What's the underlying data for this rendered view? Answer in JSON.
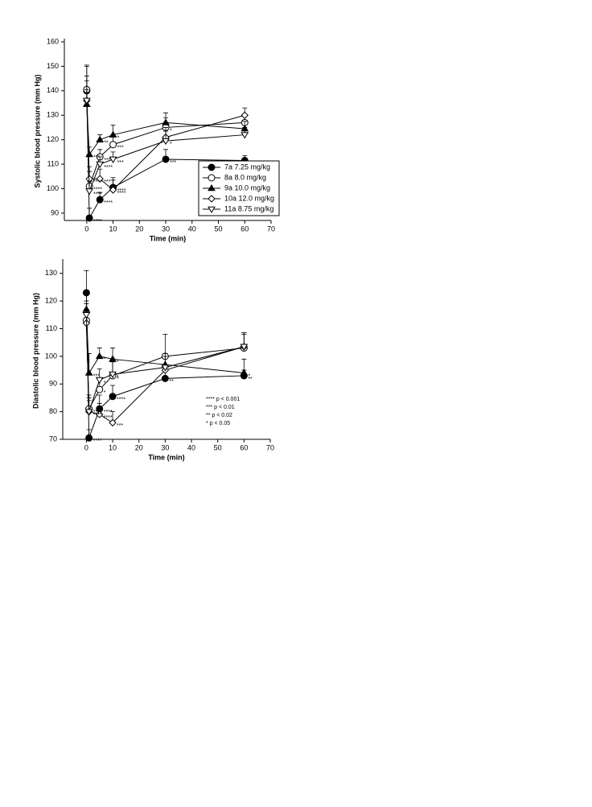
{
  "chart_data": [
    {
      "type": "line",
      "ylabel": "Systolic blood pressure (mm Hg)",
      "xlabel": "Time (min)",
      "x": [
        0,
        1,
        5,
        10,
        30,
        60
      ],
      "xlim": [
        -8.5,
        70
      ],
      "xticks": [
        0,
        10,
        20,
        30,
        40,
        50,
        60,
        70
      ],
      "ylim": [
        87,
        160
      ],
      "yticks": [
        90,
        100,
        110,
        120,
        130,
        140,
        150,
        160
      ],
      "legend": "lower right",
      "series": [
        {
          "name": "7a  7.25 mg/kg",
          "color": "#000000",
          "marker": "circle-filled",
          "values": [
            140,
            88,
            95.5,
            100.5,
            112,
            111.5
          ],
          "errors": [
            10,
            4,
            3,
            3,
            4,
            2
          ],
          "significance": [
            null,
            "****",
            "****",
            "****",
            "***",
            "***"
          ]
        },
        {
          "name": "8a  8.0 mg/kg",
          "color": "#000000",
          "marker": "circle-open",
          "values": [
            140.5,
            101,
            113,
            118,
            125,
            127
          ],
          "errors": [
            10,
            6,
            3,
            4,
            4,
            3
          ],
          "significance": [
            null,
            "****",
            "***",
            "***",
            "*",
            null
          ]
        },
        {
          "name": "9a  10.0 mg/kg",
          "color": "#000000",
          "marker": "triangle-filled",
          "values": [
            134.5,
            114,
            120,
            122,
            127,
            124.5
          ],
          "errors": [
            6,
            3,
            2,
            4,
            4,
            3
          ],
          "significance": [
            null,
            "***",
            "**",
            "*",
            null,
            null
          ]
        },
        {
          "name": "10a 12.0 mg/kg",
          "color": "#000000",
          "marker": "diamond-open",
          "values": [
            136,
            104,
            104,
            99.5,
            121,
            130
          ],
          "errors": [
            10,
            5,
            4,
            5,
            4,
            3
          ],
          "significance": [
            null,
            "****",
            "***",
            "****",
            null,
            null
          ]
        },
        {
          "name": "11a  8.75 mg/kg",
          "color": "#000000",
          "marker": "triangle-down-open",
          "values": [
            136,
            99,
            110,
            112,
            119.5,
            122
          ],
          "errors": [
            8,
            4,
            3,
            3,
            4,
            3
          ],
          "significance": [
            null,
            "****",
            "****",
            "***",
            "*",
            null
          ]
        }
      ]
    },
    {
      "type": "line",
      "ylabel": "Diastolic blood pressure (mm Hg)",
      "xlabel": "Time (min)",
      "x": [
        0,
        1,
        5,
        10,
        30,
        60
      ],
      "xlim": [
        -9,
        70
      ],
      "xticks": [
        0,
        10,
        20,
        30,
        40,
        50,
        60,
        70
      ],
      "ylim": [
        70,
        134
      ],
      "yticks": [
        70,
        80,
        90,
        100,
        110,
        120,
        130
      ],
      "notes": [
        "**** p < 0.001",
        "***  p < 0.01",
        "**   p < 0.02",
        "*    p < 0.05"
      ],
      "series": [
        {
          "name": "7a",
          "color": "#000000",
          "marker": "circle-filled",
          "values": [
            123,
            70.5,
            81,
            85.5,
            92,
            93
          ],
          "errors": [
            8,
            3,
            5,
            4,
            3,
            2
          ],
          "significance": [
            null,
            "****",
            "****",
            "****",
            "**",
            "**"
          ]
        },
        {
          "name": "8a",
          "color": "#000000",
          "marker": "circle-open",
          "values": [
            113,
            81,
            88,
            93,
            100,
            103
          ],
          "errors": [
            7,
            5,
            4,
            5,
            8,
            5
          ],
          "significance": [
            null,
            "****",
            "*",
            "*",
            null,
            null
          ]
        },
        {
          "name": "9a",
          "color": "#000000",
          "marker": "triangle-filled",
          "values": [
            117,
            94,
            100,
            99,
            97,
            94
          ],
          "errors": [
            2,
            7,
            3,
            4,
            3,
            5
          ],
          "significance": [
            null,
            "***",
            "*",
            "*",
            null,
            "*"
          ]
        },
        {
          "name": "10a",
          "color": "#000000",
          "marker": "diamond-open",
          "values": [
            112,
            80,
            79,
            76,
            95,
            103.5
          ],
          "errors": [
            5,
            5,
            4,
            4,
            5,
            5
          ],
          "significance": [
            null,
            "****",
            "****",
            "***",
            null,
            null
          ]
        },
        {
          "name": "11a",
          "color": "#000000",
          "marker": "triangle-down-open",
          "values": [
            115,
            80,
            91.5,
            93.5,
            96,
            103.5
          ],
          "errors": [
            5,
            4,
            4,
            5,
            5,
            5
          ],
          "significance": [
            null,
            "***",
            "*",
            "*",
            null,
            null
          ]
        }
      ]
    }
  ]
}
